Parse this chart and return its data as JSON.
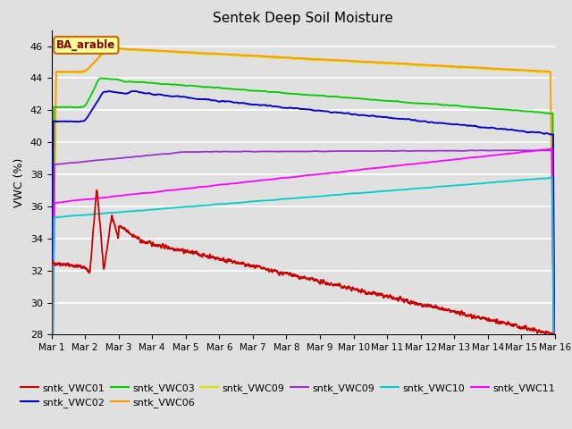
{
  "title": "Sentek Deep Soil Moisture",
  "ylabel": "VWC (%)",
  "ylim": [
    28,
    47
  ],
  "yticks": [
    28,
    30,
    32,
    34,
    36,
    38,
    40,
    42,
    44,
    46
  ],
  "background_color": "#e0e0e0",
  "annotation_text": "BA_arable",
  "annotation_bg": "#ffff99",
  "annotation_border": "#cc6600",
  "series_colors": {
    "vwc01": "#cc0000",
    "vwc02": "#0000cc",
    "vwc03": "#00cc00",
    "vwc06": "#ff9900",
    "vwc09y": "#dddd00",
    "vwc09p": "#9933cc",
    "vwc10": "#00cccc",
    "vwc11": "#ff00ff"
  },
  "legend_labels": [
    "sntk_VWC01",
    "sntk_VWC02",
    "sntk_VWC03",
    "sntk_VWC06",
    "sntk_VWC09",
    "sntk_VWC09",
    "sntk_VWC10",
    "sntk_VWC11"
  ],
  "xtick_labels": [
    "Mar 1",
    "Mar 2",
    "Mar 3",
    "Mar 4",
    "Mar 5",
    "Mar 6",
    "Mar 7",
    "Mar 8",
    "Mar 9",
    "Mar 10",
    "Mar 11",
    "Mar 12",
    "Mar 13",
    "Mar 14",
    "Mar 15",
    "Mar 16"
  ]
}
